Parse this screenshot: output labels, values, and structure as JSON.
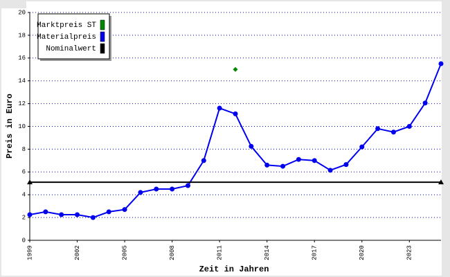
{
  "chart_data": {
    "type": "line",
    "ylabel": "Preis in Euro",
    "xlabel": "Zeit in Jahren",
    "x": [
      1999,
      2000,
      2001,
      2002,
      2003,
      2004,
      2005,
      2006,
      2007,
      2008,
      2009,
      2010,
      2011,
      2012,
      2013,
      2014,
      2015,
      2016,
      2017,
      2018,
      2019,
      2020,
      2021,
      2022,
      2023,
      2024,
      2025
    ],
    "xlim": [
      1999,
      2025
    ],
    "xticks": [
      1999,
      2002,
      2005,
      2008,
      2011,
      2014,
      2017,
      2020,
      2023
    ],
    "ylim": [
      0,
      20
    ],
    "yticks": [
      0,
      2,
      4,
      6,
      8,
      10,
      12,
      14,
      16,
      18,
      20
    ],
    "grid": true,
    "legend": "upper left",
    "series": [
      {
        "name": "Marktpreis ST",
        "color": "#008800",
        "marker": "diamond",
        "x": [
          2012
        ],
        "values": [
          15
        ]
      },
      {
        "name": "Materialpreis",
        "color": "#0000ee",
        "marker": "circle",
        "values": [
          2.25,
          2.5,
          2.25,
          2.25,
          2.0,
          2.5,
          2.7,
          4.2,
          4.5,
          4.5,
          4.8,
          7.0,
          11.6,
          11.1,
          8.25,
          6.6,
          6.5,
          7.1,
          7.0,
          6.15,
          6.65,
          8.2,
          9.8,
          9.5,
          10.0,
          12.05,
          15.5
        ]
      },
      {
        "name": "Nominalwert",
        "color": "#000000",
        "marker": "triangle",
        "x": [
          1999,
          2025
        ],
        "values": [
          5.1,
          5.1
        ]
      }
    ]
  }
}
